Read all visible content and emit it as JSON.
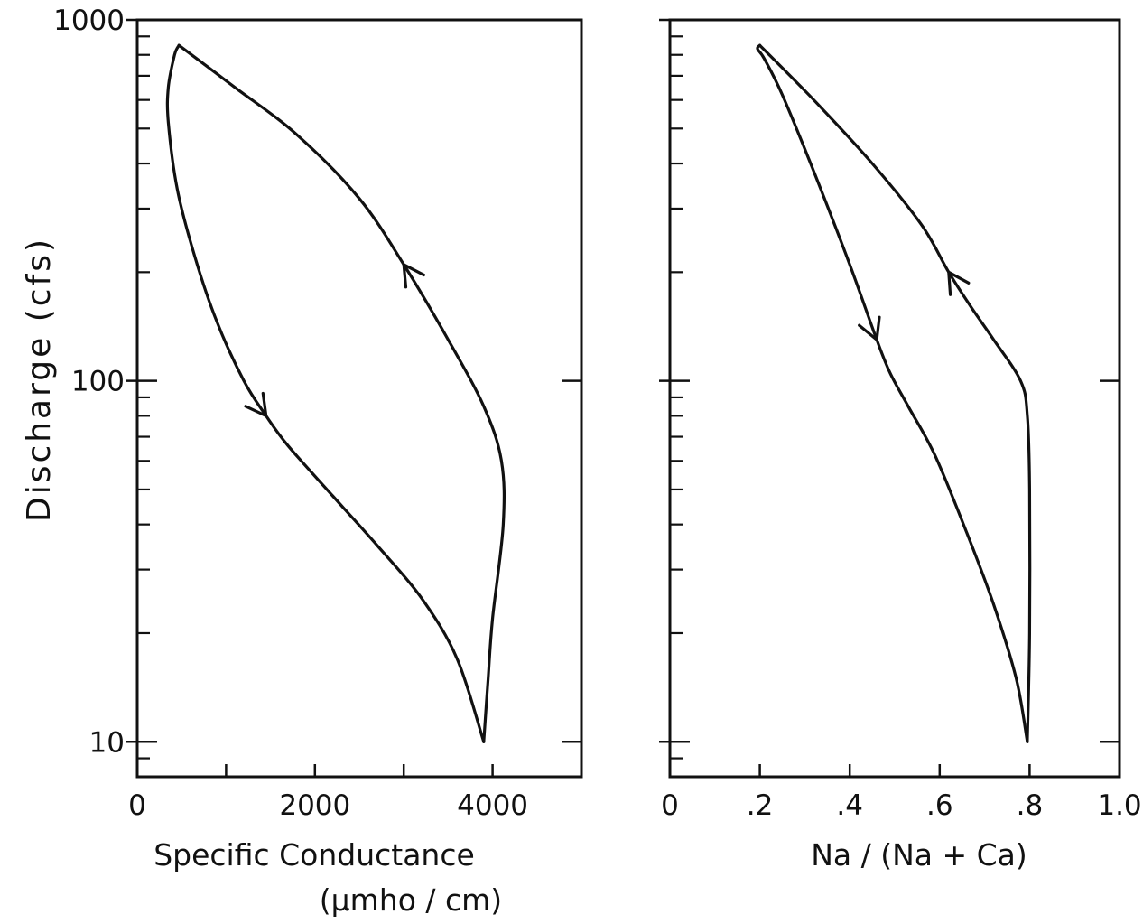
{
  "figure": {
    "ylabel": "Discharge (cfs)"
  },
  "chart_data": [
    {
      "type": "line",
      "yscale": "log",
      "ylim": [
        8,
        1000
      ],
      "xlim": [
        0,
        5000
      ],
      "xticks_labeled": [
        0,
        2000,
        4000
      ],
      "xtick_labels": [
        "0",
        "2000",
        "4000"
      ],
      "xticks_minor": [
        1000,
        3000,
        5000
      ],
      "yticks_labeled": [
        10,
        100,
        1000
      ],
      "ytick_labels": [
        "10",
        "100",
        "1000"
      ],
      "xlabel": "Specific Conductance",
      "xlabel_unit": "(μmho / cm)",
      "ylabel": "Discharge (cfs)",
      "grid": false,
      "series": [
        {
          "x": [
            3900,
            3600,
            3200,
            2700,
            2200,
            1700,
            1450,
            1200,
            900,
            650,
            450,
            350,
            350,
            420,
            470
          ],
          "y": [
            10,
            17,
            25,
            35,
            48,
            66,
            80,
            100,
            145,
            220,
            340,
            520,
            650,
            800,
            850
          ]
        },
        {
          "x": [
            470,
            1100,
            1800,
            2500,
            3000,
            3500,
            3900,
            4100,
            4120,
            4000,
            3950,
            3900
          ],
          "y": [
            850,
            650,
            480,
            320,
            210,
            130,
            85,
            60,
            40,
            22,
            15,
            10
          ]
        }
      ],
      "arrows": [
        {
          "x": 1450,
          "y": 80,
          "direction": "down"
        },
        {
          "x": 3000,
          "y": 210,
          "direction": "up"
        }
      ]
    },
    {
      "type": "line",
      "yscale": "log",
      "ylim": [
        8,
        1000
      ],
      "xlim": [
        0,
        1.0
      ],
      "xticks_labeled": [
        0,
        0.2,
        0.4,
        0.6,
        0.8,
        1.0
      ],
      "xtick_labels": [
        "0",
        ".2",
        ".4",
        ".6",
        ".8",
        "1.0"
      ],
      "yticks_labeled": [
        10,
        100,
        1000
      ],
      "ytick_labels": [
        "",
        "",
        ""
      ],
      "xlabel": "Na / (Na + Ca)",
      "grid": false,
      "series": [
        {
          "x": [
            0.795,
            0.77,
            0.72,
            0.66,
            0.59,
            0.53,
            0.49,
            0.46,
            0.4,
            0.32,
            0.25,
            0.21,
            0.195,
            0.2
          ],
          "y": [
            10,
            15,
            24,
            38,
            62,
            85,
            105,
            130,
            210,
            380,
            620,
            780,
            830,
            850
          ]
        },
        {
          "x": [
            0.2,
            0.32,
            0.45,
            0.56,
            0.62,
            0.67,
            0.72,
            0.78,
            0.795,
            0.8,
            0.8,
            0.795
          ],
          "y": [
            850,
            600,
            400,
            270,
            200,
            160,
            130,
            100,
            80,
            50,
            20,
            10
          ]
        }
      ],
      "arrows": [
        {
          "x": 0.46,
          "y": 130,
          "direction": "down"
        },
        {
          "x": 0.62,
          "y": 200,
          "direction": "up"
        }
      ]
    }
  ]
}
